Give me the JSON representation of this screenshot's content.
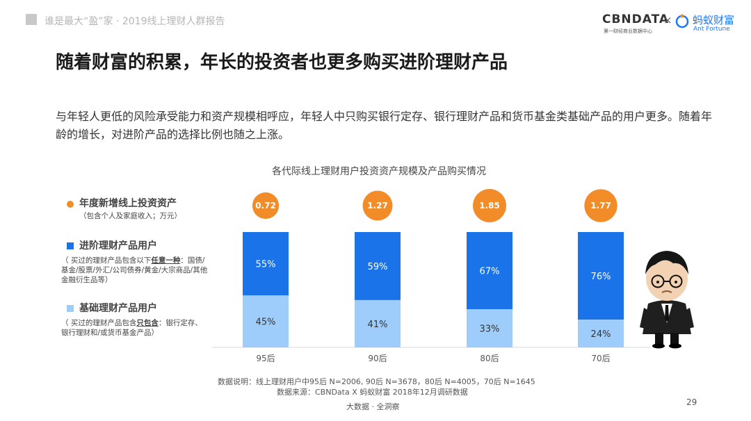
{
  "header": {
    "report_title": "谁是最大“盈”家 · 2019线上理财人群报告",
    "logo_cbn": "CBNDATA",
    "logo_cbn_sub": "第一财经商业数据中心",
    "logo_x": "×",
    "logo_ant": "蚂蚁财富",
    "logo_ant_en": "Ant Fortune"
  },
  "slide": {
    "title": "随着财富的积累，年长的投资者也更多购买进阶理财产品",
    "intro": "与年轻人更低的风险承受能力和资产规模相呼应，年轻人中只购买银行定存、银行理财产品和货币基金类基础产品的用户更多。随着年龄的增长，对进阶产品的选择比例也随之上涨。"
  },
  "legend": {
    "assets_label": "年度新增线上投资资产",
    "assets_note": "（包含个人及家庭收入；万元）",
    "advanced_label": "进阶理财产品用户",
    "advanced_note_a": "（ 买过的理财产品包含以下",
    "advanced_note_em": "任意一种",
    "advanced_note_b": "：国债/基金/股票/外汇/公司债券/黄金/大宗商品/其他金融衍生品等）",
    "basic_label": "基础理财产品用户",
    "basic_note_a": "（ 买过的理财产品包含",
    "basic_note_em": "只包含",
    "basic_note_b": "：银行定存、银行理财和/或货币基金产品）"
  },
  "chart_data": {
    "type": "bar",
    "title": "各代际线上理财用户投资资产规模及产品购买情况",
    "stacked": true,
    "categories": [
      "95后",
      "90后",
      "80后",
      "70后"
    ],
    "series": [
      {
        "name": "进阶理财产品用户",
        "values": [
          55,
          59,
          67,
          76
        ],
        "labels": [
          "55%",
          "59%",
          "67%",
          "76%"
        ],
        "color": "#1a73e8"
      },
      {
        "name": "基础理财产品用户",
        "values": [
          45,
          41,
          33,
          24
        ],
        "labels": [
          "45%",
          "41%",
          "33%",
          "24%"
        ],
        "color": "#9fcdfb"
      }
    ],
    "bubbles": {
      "name": "年度新增线上投资资产",
      "values": [
        0.72,
        1.27,
        1.85,
        1.77
      ],
      "labels": [
        "0.72",
        "1.27",
        "1.85",
        "1.77"
      ],
      "color": "#f28c28"
    },
    "ylim": [
      0,
      100
    ]
  },
  "footnotes": {
    "line1": "数据说明：线上理财用户中95后 N=2006, 90后 N=3678，80后 N=4005，70后 N=1645",
    "line2": "数据来源：CBNData X 蚂蚁财富 2018年12月调研数据",
    "footer": "大数据 · 全洞察",
    "page": "29"
  },
  "colors": {
    "advanced": "#1a73e8",
    "basic": "#9fcdfb",
    "bubble": "#f28c28",
    "ant_blue": "#1677ff"
  }
}
